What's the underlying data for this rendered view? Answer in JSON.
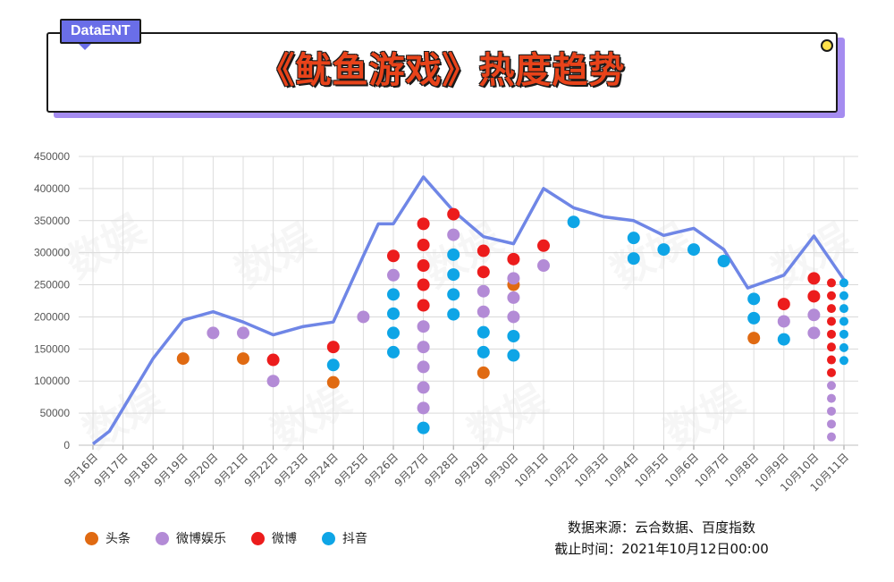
{
  "header": {
    "brand": "DataENT",
    "title": "《鱿鱼游戏》热度趋势"
  },
  "source": {
    "line1": "数据来源：云合数据、百度指数",
    "line2": "截止时间：2021年10月12日00:00"
  },
  "colors": {
    "line": "#6f86e6",
    "toutiao": "#e06a12",
    "weibo_ent": "#b38bd6",
    "weibo": "#ec1c1c",
    "douyin": "#0ea5e6"
  },
  "watermark": "数娱",
  "chart_data": {
    "type": "line",
    "title": "《鱿鱼游戏》热度趋势",
    "xlabel": "",
    "ylabel": "",
    "ylim": [
      0,
      450000
    ],
    "yticks": [
      0,
      50000,
      100000,
      150000,
      200000,
      250000,
      300000,
      350000,
      400000,
      450000
    ],
    "grid": true,
    "legend_position": "bottom-left",
    "categories": [
      "9月16日",
      "9月17日",
      "9月18日",
      "9月19日",
      "9月20日",
      "9月21日",
      "9月22日",
      "9月23日",
      "9月24日",
      "9月25日",
      "9月26日",
      "9月27日",
      "9月28日",
      "9月29日",
      "9月30日",
      "10月1日",
      "10月2日",
      "10月3日",
      "10月4日",
      "10月5日",
      "10月6日",
      "10月7日",
      "10月8日",
      "10月9日",
      "10月10日",
      "10月11日"
    ],
    "line": {
      "x": [
        "9月16日",
        "9月17日",
        "9月18日",
        "9月19日",
        "9月20日",
        "9月21日",
        "9月22日",
        "9月23日",
        "9月24日",
        "9月25日",
        "9月26日",
        "9月26日",
        "9月27日",
        "9月28日",
        "9月29日",
        "9月30日",
        "10月1日",
        "10月2日",
        "10月3日",
        "10月4日",
        "10月5日",
        "10月6日",
        "10月7日",
        "10月8日",
        "10月9日",
        "10月10日",
        "10月11日"
      ],
      "x_offset": [
        0,
        -0.45,
        0,
        0,
        0,
        0,
        0,
        0,
        0,
        0,
        -0.5,
        0,
        0,
        0,
        0,
        0,
        0,
        0,
        0,
        0,
        0,
        0,
        0,
        -0.2,
        0,
        0,
        0
      ],
      "values": [
        2000,
        22000,
        135000,
        195000,
        208000,
        192000,
        172000,
        185000,
        192000,
        295000,
        345000,
        345000,
        418000,
        365000,
        325000,
        314000,
        400000,
        370000,
        356000,
        350000,
        327000,
        338000,
        305000,
        245000,
        265000,
        326000,
        258000
      ]
    },
    "series": [
      {
        "name": "头条",
        "points": [
          {
            "x": "9月19日",
            "y": 135000
          },
          {
            "x": "9月21日",
            "y": 135000
          },
          {
            "x": "9月24日",
            "y": 98000
          },
          {
            "x": "9月29日",
            "y": 113000
          },
          {
            "x": "9月30日",
            "y": 250000
          },
          {
            "x": "10月8日",
            "y": 167000
          }
        ]
      },
      {
        "name": "微博娱乐",
        "points": [
          {
            "x": "9月20日",
            "y": 175000
          },
          {
            "x": "9月21日",
            "y": 175000
          },
          {
            "x": "9月22日",
            "y": 100000
          },
          {
            "x": "9月25日",
            "y": 200000
          },
          {
            "x": "9月26日",
            "y": 265000
          },
          {
            "x": "9月27日",
            "y": 185000
          },
          {
            "x": "9月27日",
            "y": 153000
          },
          {
            "x": "9月27日",
            "y": 122000
          },
          {
            "x": "9月27日",
            "y": 90000
          },
          {
            "x": "9月27日",
            "y": 58000
          },
          {
            "x": "9月28日",
            "y": 328000
          },
          {
            "x": "9月29日",
            "y": 240000
          },
          {
            "x": "9月29日",
            "y": 208000
          },
          {
            "x": "9月30日",
            "y": 260000
          },
          {
            "x": "9月30日",
            "y": 230000
          },
          {
            "x": "9月30日",
            "y": 200000
          },
          {
            "x": "10月1日",
            "y": 280000
          },
          {
            "x": "10月9日",
            "y": 193000
          },
          {
            "x": "10月10日",
            "y": 203000
          },
          {
            "x": "10月10日",
            "y": 175000
          },
          {
            "x": "10月11日",
            "y": 93000
          },
          {
            "x": "10月11日",
            "y": 73000
          },
          {
            "x": "10月11日",
            "y": 53000
          },
          {
            "x": "10月11日",
            "y": 33000
          },
          {
            "x": "10月11日",
            "y": 13000
          }
        ]
      },
      {
        "name": "微博",
        "points": [
          {
            "x": "9月22日",
            "y": 133000
          },
          {
            "x": "9月24日",
            "y": 153000
          },
          {
            "x": "9月26日",
            "y": 295000
          },
          {
            "x": "9月27日",
            "y": 345000
          },
          {
            "x": "9月27日",
            "y": 312000
          },
          {
            "x": "9月27日",
            "y": 280000
          },
          {
            "x": "9月27日",
            "y": 250000
          },
          {
            "x": "9月27日",
            "y": 218000
          },
          {
            "x": "9月28日",
            "y": 360000
          },
          {
            "x": "9月29日",
            "y": 303000
          },
          {
            "x": "9月29日",
            "y": 270000
          },
          {
            "x": "9月30日",
            "y": 290000
          },
          {
            "x": "10月1日",
            "y": 311000
          },
          {
            "x": "10月9日",
            "y": 220000
          },
          {
            "x": "10月10日",
            "y": 260000
          },
          {
            "x": "10月10日",
            "y": 232000
          },
          {
            "x": "10月11日",
            "y": 253000
          },
          {
            "x": "10月11日",
            "y": 233000
          },
          {
            "x": "10月11日",
            "y": 213000
          },
          {
            "x": "10月11日",
            "y": 193000
          },
          {
            "x": "10月11日",
            "y": 173000
          },
          {
            "x": "10月11日",
            "y": 153000
          },
          {
            "x": "10月11日",
            "y": 133000
          },
          {
            "x": "10月11日",
            "y": 113000
          }
        ]
      },
      {
        "name": "抖音",
        "points": [
          {
            "x": "9月24日",
            "y": 125000
          },
          {
            "x": "9月26日",
            "y": 235000
          },
          {
            "x": "9月26日",
            "y": 205000
          },
          {
            "x": "9月26日",
            "y": 175000
          },
          {
            "x": "9月26日",
            "y": 145000
          },
          {
            "x": "9月27日",
            "y": 27000
          },
          {
            "x": "9月28日",
            "y": 297000
          },
          {
            "x": "9月28日",
            "y": 266000
          },
          {
            "x": "9月28日",
            "y": 235000
          },
          {
            "x": "9月28日",
            "y": 204000
          },
          {
            "x": "9月29日",
            "y": 176000
          },
          {
            "x": "9月29日",
            "y": 145000
          },
          {
            "x": "9月30日",
            "y": 170000
          },
          {
            "x": "9月30日",
            "y": 140000
          },
          {
            "x": "10月2日",
            "y": 348000
          },
          {
            "x": "10月4日",
            "y": 323000
          },
          {
            "x": "10月4日",
            "y": 291000
          },
          {
            "x": "10月5日",
            "y": 305000
          },
          {
            "x": "10月6日",
            "y": 305000
          },
          {
            "x": "10月7日",
            "y": 287000
          },
          {
            "x": "10月8日",
            "y": 228000
          },
          {
            "x": "10月8日",
            "y": 198000
          },
          {
            "x": "10月9日",
            "y": 165000
          },
          {
            "x": "10月11日",
            "y": 253000
          },
          {
            "x": "10月11日",
            "y": 233000
          },
          {
            "x": "10月11日",
            "y": 213000
          },
          {
            "x": "10月11日",
            "y": 193000
          },
          {
            "x": "10月11日",
            "y": 173000
          },
          {
            "x": "10月11日",
            "y": 152000
          },
          {
            "x": "10月11日",
            "y": 132000
          }
        ]
      }
    ]
  }
}
